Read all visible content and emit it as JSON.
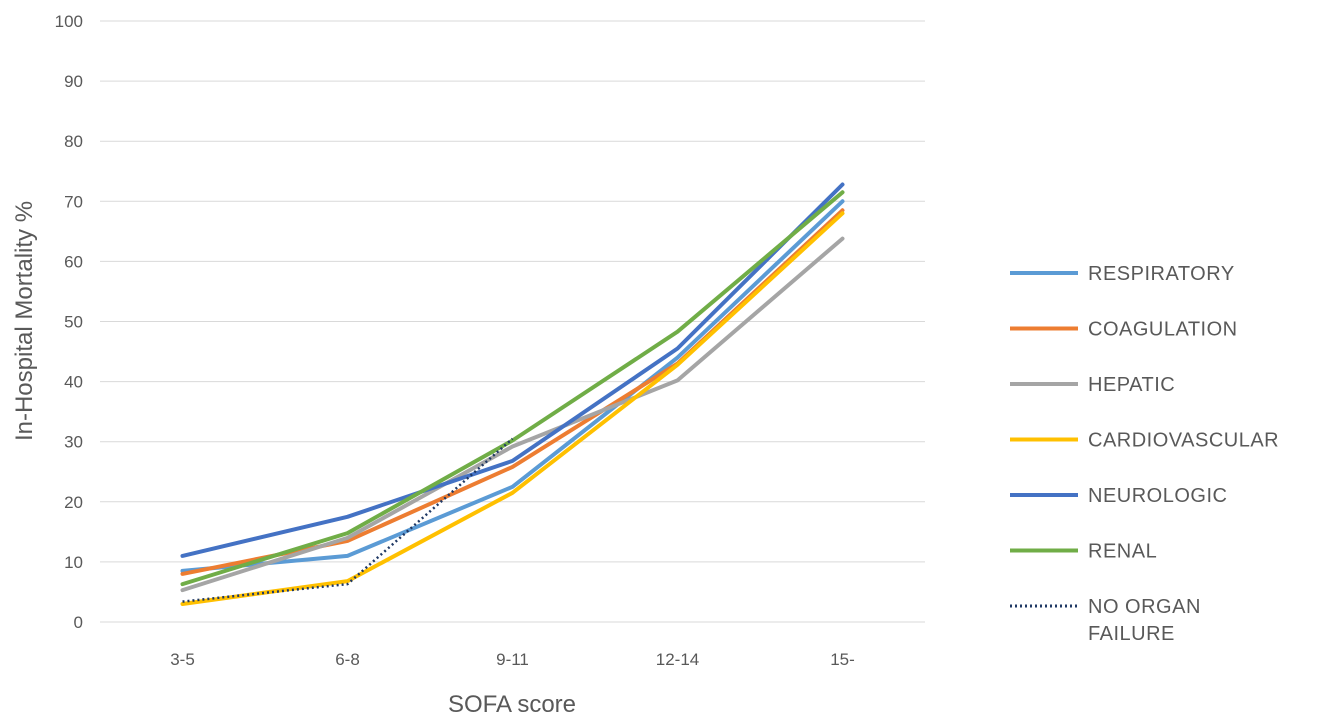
{
  "chart_data": {
    "type": "line",
    "title": "",
    "xlabel": "SOFA score",
    "ylabel": "In-Hospital Mortality %",
    "categories": [
      "3-5",
      "6-8",
      "9-11",
      "12-14",
      "15-"
    ],
    "ylim": [
      0,
      100
    ],
    "yticks": [
      0,
      10,
      20,
      30,
      40,
      50,
      60,
      70,
      80,
      90,
      100
    ],
    "grid": "horizontal",
    "legend_position": "right",
    "series": [
      {
        "name": "RESPIRATORY",
        "color": "#5B9BD5",
        "style": "solid",
        "values": [
          8.5,
          11,
          22.5,
          44,
          70
        ]
      },
      {
        "name": "COAGULATION",
        "color": "#ED7D31",
        "style": "solid",
        "values": [
          8,
          13.5,
          25.8,
          43,
          68.5
        ]
      },
      {
        "name": "HEPATIC",
        "color": "#A5A5A5",
        "style": "solid",
        "values": [
          5.3,
          14,
          29.2,
          40.2,
          63.8
        ]
      },
      {
        "name": "CARDIOVASCULAR",
        "color": "#FFC000",
        "style": "solid",
        "values": [
          3,
          6.8,
          21.5,
          42.8,
          68
        ]
      },
      {
        "name": "NEUROLOGIC",
        "color": "#4472C4",
        "style": "solid",
        "values": [
          11,
          17.5,
          26.8,
          45.5,
          72.8
        ]
      },
      {
        "name": "RENAL",
        "color": "#70AD47",
        "style": "solid",
        "values": [
          6.3,
          14.8,
          30.2,
          48.3,
          71.5
        ]
      },
      {
        "name": "NO ORGAN FAILURE",
        "legend_lines": [
          "NO ORGAN",
          "FAILURE"
        ],
        "color": "#1F3864",
        "style": "dotted",
        "values": [
          3.4,
          6.3,
          30.5,
          null,
          null
        ]
      }
    ]
  }
}
